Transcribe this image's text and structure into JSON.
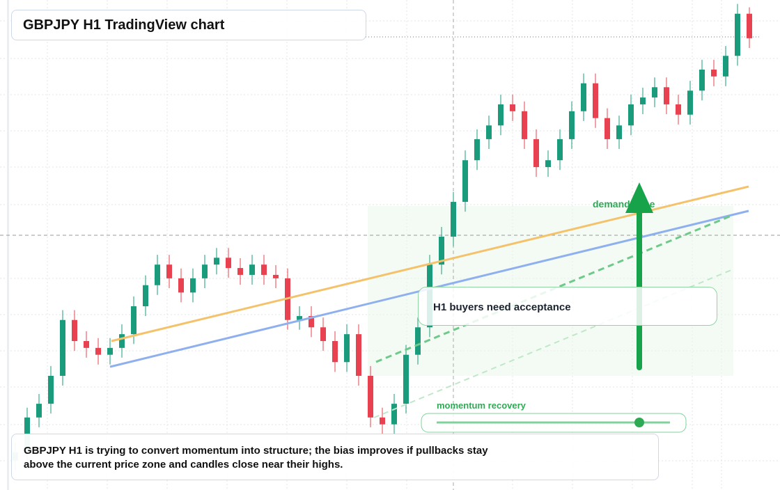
{
  "header": {
    "title": "GBPJPY H1 TradingView chart"
  },
  "chart_data": {
    "type": "candlestick",
    "open": [
      6.0,
      7.7,
      14.8,
      17.6,
      23.3,
      34.7,
      30.4,
      29.0,
      27.6,
      29.0,
      31.8,
      37.5,
      41.8,
      46.0,
      43.2,
      40.3,
      43.2,
      46.0,
      47.4,
      45.3,
      43.9,
      46.0,
      43.9,
      43.2,
      34.7,
      35.5,
      33.2,
      30.4,
      26.1,
      31.8,
      23.3,
      14.8,
      13.4,
      17.6,
      27.6,
      33.2,
      46.0,
      51.7,
      58.8,
      67.3,
      71.6,
      74.4,
      78.7,
      77.3,
      71.6,
      65.9,
      67.3,
      71.6,
      77.3,
      83.0,
      75.9,
      71.6,
      74.4,
      78.7,
      80.1,
      82.2,
      78.7,
      76.6,
      81.5,
      85.8,
      84.4,
      88.6,
      97.2
    ],
    "high": [
      9.7,
      16.8,
      19.6,
      25.3,
      36.7,
      36.7,
      32.4,
      31.0,
      31.0,
      33.8,
      39.5,
      43.8,
      48.0,
      48.0,
      45.2,
      45.2,
      48.0,
      49.4,
      49.4,
      47.3,
      48.0,
      48.0,
      45.9,
      45.2,
      37.5,
      37.5,
      35.2,
      32.4,
      33.8,
      33.8,
      25.3,
      16.8,
      19.6,
      29.6,
      35.2,
      48.0,
      53.7,
      60.8,
      69.3,
      73.6,
      76.4,
      80.7,
      80.7,
      79.3,
      73.6,
      69.3,
      73.6,
      79.3,
      85.0,
      85.0,
      77.9,
      76.4,
      80.7,
      82.1,
      84.2,
      84.2,
      80.7,
      83.5,
      87.8,
      87.8,
      90.6,
      99.2,
      98.5
    ],
    "low": [
      4.0,
      5.7,
      12.8,
      15.6,
      21.3,
      28.4,
      27.0,
      25.6,
      25.6,
      27.0,
      29.8,
      35.5,
      39.8,
      41.2,
      38.3,
      38.3,
      41.2,
      44.0,
      43.3,
      41.9,
      41.9,
      41.9,
      41.2,
      32.7,
      32.7,
      31.2,
      28.4,
      24.1,
      24.1,
      21.3,
      12.8,
      11.4,
      11.4,
      15.6,
      25.6,
      31.2,
      44.0,
      49.7,
      56.8,
      65.3,
      69.6,
      72.4,
      75.3,
      69.6,
      63.9,
      63.9,
      65.3,
      69.6,
      75.3,
      73.9,
      69.6,
      69.6,
      72.4,
      76.7,
      78.1,
      76.7,
      74.6,
      74.6,
      79.5,
      82.4,
      82.4,
      86.6,
      90.2
    ],
    "close": [
      7.7,
      14.8,
      17.6,
      23.3,
      34.7,
      30.4,
      29.0,
      27.6,
      29.0,
      31.8,
      37.5,
      41.8,
      46.0,
      43.2,
      40.3,
      43.2,
      46.0,
      47.4,
      45.3,
      43.9,
      46.0,
      43.9,
      43.2,
      34.7,
      35.5,
      33.2,
      30.4,
      26.1,
      31.8,
      23.3,
      14.8,
      13.4,
      17.6,
      27.6,
      33.2,
      46.0,
      51.7,
      58.8,
      67.3,
      71.6,
      74.4,
      78.7,
      77.3,
      71.6,
      65.9,
      67.3,
      71.6,
      77.3,
      83.0,
      75.9,
      71.6,
      74.4,
      78.7,
      80.1,
      82.2,
      78.7,
      76.6,
      81.5,
      85.8,
      84.4,
      88.6,
      97.2,
      92.2
    ],
    "up_color": "#1a9c7c",
    "down_color": "#e8414f",
    "ylim": [
      0,
      100
    ]
  },
  "annotations": {
    "zone": "demand zone",
    "callout": "H1 buyers need acceptance",
    "momentum": "momentum recovery"
  },
  "caption": "GBPJPY H1 is trying to convert momentum into structure; the bias improves if pullbacks stay above the current price zone and candles close near their highs."
}
